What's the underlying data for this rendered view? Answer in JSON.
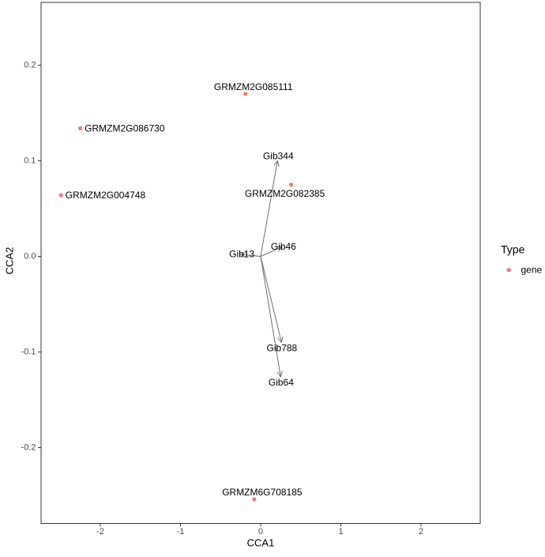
{
  "chart_data": {
    "type": "scatter",
    "title": "",
    "xlabel": "CCA1",
    "ylabel": "CCA2",
    "xlim": [
      -2.74,
      2.74
    ],
    "ylim": [
      -0.28,
      0.27
    ],
    "grid": false,
    "x_ticks": [
      {
        "value": -2,
        "label": "-2"
      },
      {
        "value": -1,
        "label": "-1"
      },
      {
        "value": 0,
        "label": "0"
      },
      {
        "value": 1,
        "label": "1"
      },
      {
        "value": 2,
        "label": "2"
      }
    ],
    "y_ticks": [
      {
        "value": 0.2,
        "label": "0.2"
      },
      {
        "value": 0.1,
        "label": "0.1"
      },
      {
        "value": 0.0,
        "label": "0.0"
      },
      {
        "value": -0.1,
        "label": "-0.1"
      },
      {
        "value": -0.2,
        "label": "-0.2"
      }
    ],
    "legend": {
      "title": "Type",
      "position": "right",
      "items": [
        {
          "label": "gene",
          "marker": "point",
          "color": "#F8766D"
        }
      ]
    },
    "series": [
      {
        "name": "gene",
        "marker": "point",
        "color": "#F8766D",
        "points": [
          {
            "label": "GRMZM2G085111",
            "x": -0.19,
            "y": 0.17,
            "label_placement": "above"
          },
          {
            "label": "GRMZM2G086730",
            "x": -2.25,
            "y": 0.134,
            "label_placement": "right"
          },
          {
            "label": "GRMZM2G004748",
            "x": -2.49,
            "y": 0.064,
            "label_placement": "right"
          },
          {
            "label": "GRMZM2G082385",
            "x": 0.38,
            "y": 0.075,
            "label_placement": "below"
          },
          {
            "label": "GRMZM6G708185",
            "x": -0.08,
            "y": -0.254,
            "label_placement": "above"
          }
        ]
      }
    ],
    "arrows": {
      "origin": [
        0,
        0
      ],
      "color": "#6e6e6e",
      "items": [
        {
          "label": "Gib344",
          "x": 0.21,
          "y": 0.1,
          "label_placement": "above"
        },
        {
          "label": "Gib46",
          "x": 0.27,
          "y": 0.01,
          "label_placement": "on"
        },
        {
          "label": "Gib13",
          "x": -0.25,
          "y": 0.002,
          "label_placement": "on"
        },
        {
          "label": "Gib788",
          "x": 0.26,
          "y": -0.09,
          "label_placement": "below"
        },
        {
          "label": "Gib64",
          "x": 0.25,
          "y": -0.126,
          "label_placement": "below"
        }
      ]
    },
    "colors": {
      "gene_point": "#F8766D",
      "arrow": "#6e6e6e",
      "panel_border": "#333333",
      "tick_label": "#4d4d4d",
      "background": "#ffffff"
    }
  }
}
